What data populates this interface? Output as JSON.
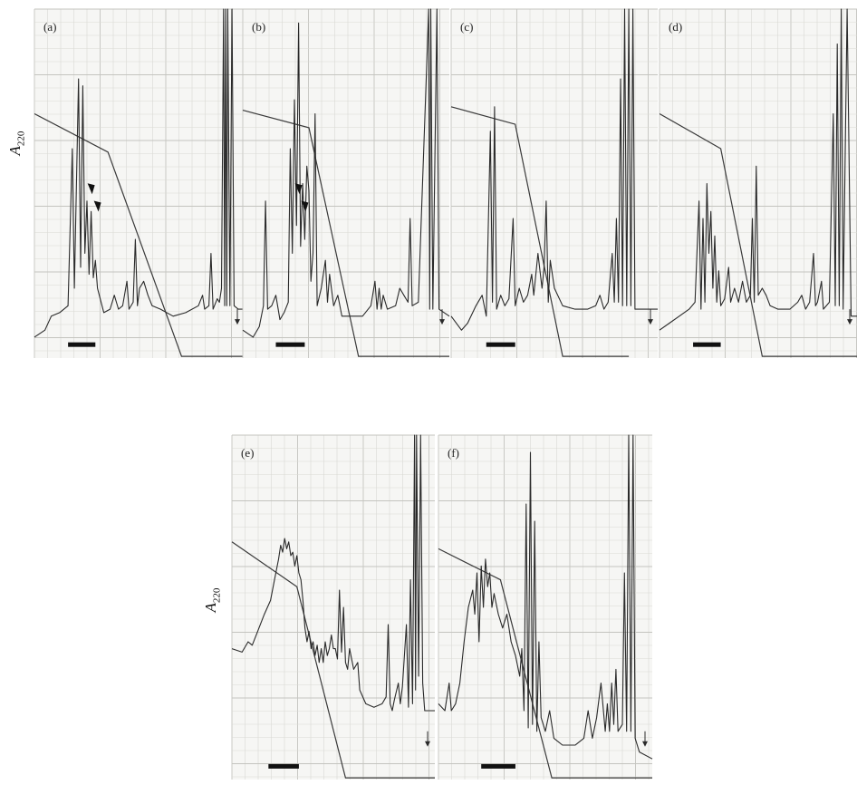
{
  "figure": {
    "y_axis_label": "A",
    "y_axis_label_subscript": "220",
    "panels": [
      {
        "id": "a",
        "label": "(a)",
        "arrowheads": 2
      },
      {
        "id": "b",
        "label": "(b)",
        "arrowheads": 2
      },
      {
        "id": "c",
        "label": "(c)",
        "arrowheads": 0
      },
      {
        "id": "d",
        "label": "(d)",
        "arrowheads": 0
      },
      {
        "id": "e",
        "label": "(e)",
        "arrowheads": 0
      },
      {
        "id": "f",
        "label": "(f)",
        "arrowheads": 0
      }
    ]
  },
  "colors": {
    "paper": "#f6f6f4",
    "grid": "#d9d9d4",
    "grid_major": "#c4c4bf",
    "trace": "#2a2a2a",
    "gradient": "#3a3a3a",
    "bar": "#111111"
  }
}
